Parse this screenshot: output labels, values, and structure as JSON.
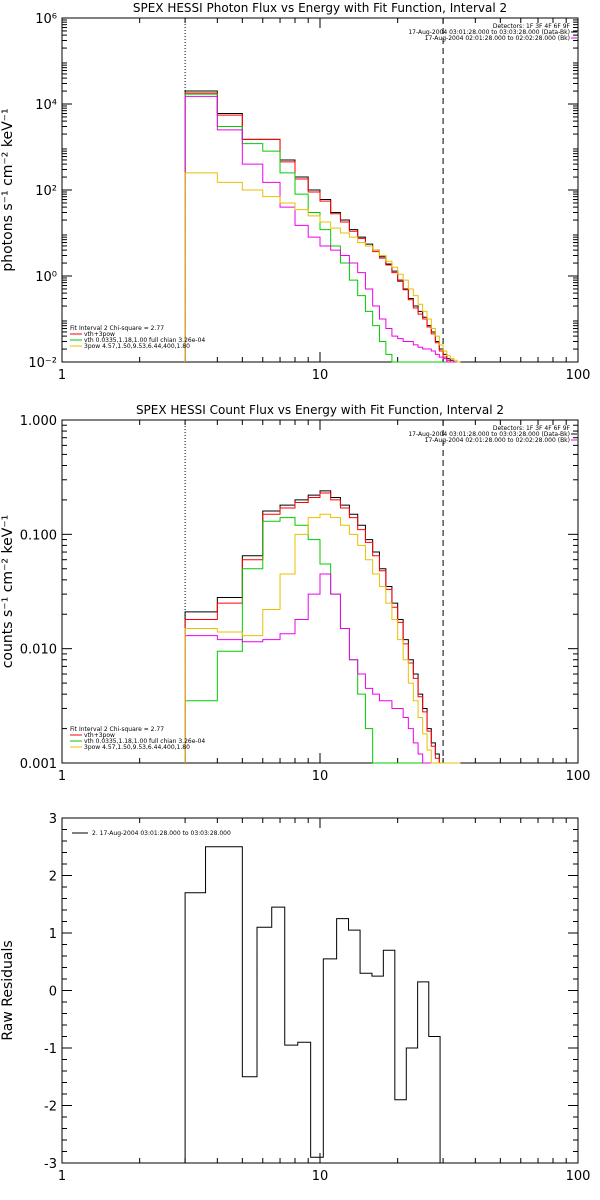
{
  "chart_data": [
    {
      "type": "line",
      "title": "SPEX HESSI Photon Flux vs Energy with Fit Function, Interval 2",
      "ylabel": "photons s⁻¹ cm⁻² keV⁻¹",
      "xscale": "log",
      "yscale": "log",
      "xlim": [
        1,
        100
      ],
      "ylim": [
        0.01,
        1000000
      ],
      "x_ticks": [
        1,
        10,
        100
      ],
      "x_ticklabels": [
        "1",
        "10",
        "100"
      ],
      "y_ticks": [
        0.01,
        1,
        100,
        10000,
        1000000
      ],
      "y_ticklabels": [
        "10⁻²",
        "10⁰",
        "10²",
        "10⁴",
        "10⁶"
      ],
      "vlines": [
        {
          "x": 3,
          "style": "dotted"
        },
        {
          "x": 30,
          "style": "dashed"
        }
      ],
      "legend_top": [
        "Detectors: 1F 3F 4F 6F 9F",
        "17-Aug-2004 03:01:28.000 to 03:03:28.000 (Data-Bk)",
        "17-Aug-2004 02:01:28.000 to 02:02:28.000 (Bk)"
      ],
      "legend_bottom": [
        "Fit Interval 2   Chi-square = 2.77",
        "vth+3pow",
        "vth 0.0335,1.18,1.00  full chian 3.26e-04",
        "3pow 4.57,1.50,9.53,6.44,400,1.80"
      ],
      "bin_edges": [
        3,
        4,
        5,
        6,
        7,
        8,
        9,
        10,
        11,
        12,
        13,
        14,
        15,
        16,
        17,
        18,
        19,
        20,
        21,
        22,
        23,
        24,
        25,
        26,
        27,
        28,
        29,
        30,
        31,
        32,
        33,
        34,
        35
      ],
      "series": [
        {
          "color": "#000000",
          "values": [
            20000,
            6000,
            1500,
            1500,
            500,
            200,
            100,
            60,
            30,
            20,
            12,
            8,
            5.5,
            4,
            2.8,
            1.9,
            1.3,
            0.8,
            0.5,
            0.3,
            0.2,
            0.15,
            0.11,
            0.07,
            0.05,
            0.03,
            0.02,
            0.015,
            0.012,
            0.011,
            0.01,
            0.01
          ]
        },
        {
          "color": "#ff0000",
          "values": [
            18000,
            5500,
            1500,
            1500,
            450,
            180,
            90,
            55,
            28,
            18,
            11,
            7.5,
            5,
            3.7,
            2.6,
            1.8,
            1.2,
            0.75,
            0.48,
            0.28,
            0.18,
            0.13,
            0.1,
            0.065,
            0.045,
            0.028,
            0.018,
            0.013,
            0.011,
            0.01,
            0.01,
            0.01
          ]
        },
        {
          "color": "#00cc00",
          "values": [
            17000,
            3000,
            1200,
            800,
            250,
            80,
            30,
            12,
            5,
            2,
            0.8,
            0.35,
            0.15,
            0.07,
            0.03,
            0.015,
            0.01,
            0.01,
            0.01,
            0.01,
            0.01,
            0.01,
            0.01,
            0.01,
            0.01,
            0.01,
            0.01,
            0.01,
            0.01,
            0.01,
            0.01,
            0.01
          ]
        },
        {
          "color": "#ee00ee",
          "values": [
            15000,
            2500,
            400,
            150,
            40,
            15,
            8,
            5,
            4,
            3,
            2,
            1.2,
            0.5,
            0.2,
            0.1,
            0.06,
            0.04,
            0.035,
            0.03,
            0.03,
            0.025,
            0.022,
            0.02,
            0.02,
            0.018,
            0.015,
            0.013,
            0.012,
            0.01,
            0.01,
            0.01,
            0.01
          ]
        },
        {
          "color": "#e8c000",
          "values": [
            250,
            150,
            100,
            70,
            50,
            35,
            25,
            18,
            13,
            10,
            8,
            6,
            5,
            4,
            3,
            2.2,
            1.6,
            1.1,
            0.8,
            0.5,
            0.35,
            0.22,
            0.15,
            0.1,
            0.06,
            0.04,
            0.025,
            0.018,
            0.014,
            0.012,
            0.011,
            0.01
          ]
        }
      ]
    },
    {
      "type": "line",
      "title": "SPEX HESSI Count Flux vs Energy with Fit Function, Interval 2",
      "ylabel": "counts s⁻¹ cm⁻² keV⁻¹",
      "xscale": "log",
      "yscale": "log",
      "xlim": [
        1,
        100
      ],
      "ylim": [
        0.001,
        1
      ],
      "x_ticks": [
        1,
        10,
        100
      ],
      "x_ticklabels": [
        "1",
        "10",
        "100"
      ],
      "y_ticks": [
        0.001,
        0.01,
        0.1,
        1
      ],
      "y_ticklabels": [
        "0.001",
        "0.010",
        "0.100",
        "1.000"
      ],
      "vlines": [
        {
          "x": 3,
          "style": "dotted"
        },
        {
          "x": 30,
          "style": "dashed"
        }
      ],
      "legend_top": [
        "Detectors: 1F 3F 4F 6F 9F",
        "17-Aug-2004 03:01:28.000 to 03:03:28.000 (Data-Bk)",
        "17-Aug-2004 02:01:28.000 to 02:02:28.000 (Bk)"
      ],
      "legend_bottom": [
        "Fit Interval 2   Chi-square = 2.77",
        "vth+3pow",
        "vth 0.0335,1.18,1.00  full chian 3.26e-04",
        "3pow 4.57,1.50,9.53,6.44,400,1.80"
      ],
      "bin_edges": [
        3,
        4,
        5,
        6,
        7,
        8,
        9,
        10,
        11,
        12,
        13,
        14,
        15,
        16,
        17,
        18,
        19,
        20,
        21,
        22,
        23,
        24,
        25,
        26,
        27,
        28,
        29,
        30,
        31,
        32,
        33,
        34,
        35
      ],
      "series": [
        {
          "color": "#000000",
          "values": [
            0.021,
            0.028,
            0.065,
            0.16,
            0.18,
            0.2,
            0.22,
            0.24,
            0.21,
            0.18,
            0.15,
            0.12,
            0.09,
            0.07,
            0.05,
            0.035,
            0.025,
            0.018,
            0.012,
            0.008,
            0.006,
            0.004,
            0.003,
            0.002,
            0.0015,
            0.0012,
            0.001,
            0.001,
            0.001,
            0.001,
            0.001,
            0.001
          ]
        },
        {
          "color": "#ff0000",
          "values": [
            0.018,
            0.025,
            0.06,
            0.15,
            0.17,
            0.19,
            0.21,
            0.23,
            0.2,
            0.17,
            0.14,
            0.11,
            0.085,
            0.065,
            0.048,
            0.033,
            0.023,
            0.017,
            0.011,
            0.0075,
            0.0055,
            0.0038,
            0.0028,
            0.0019,
            0.0014,
            0.0011,
            0.001,
            0.001,
            0.001,
            0.001,
            0.001,
            0.001
          ]
        },
        {
          "color": "#00cc00",
          "values": [
            0.0035,
            0.0095,
            0.05,
            0.13,
            0.14,
            0.12,
            0.09,
            0.055,
            0.03,
            0.015,
            0.008,
            0.004,
            0.002,
            0.001,
            0.001,
            0.001,
            0.001,
            0.001,
            0.001,
            0.001,
            0.001,
            0.001,
            0.001,
            0.001,
            0.001,
            0.001,
            0.001,
            0.001,
            0.001,
            0.001,
            0.001,
            0.001
          ]
        },
        {
          "color": "#ee00ee",
          "values": [
            0.013,
            0.012,
            0.0115,
            0.012,
            0.0135,
            0.018,
            0.03,
            0.045,
            0.03,
            0.015,
            0.008,
            0.006,
            0.0045,
            0.004,
            0.0035,
            0.0035,
            0.003,
            0.003,
            0.0025,
            0.002,
            0.0015,
            0.0012,
            0.001,
            0.001,
            0.001,
            0.001,
            0.001,
            0.001,
            0.001,
            0.001,
            0.001,
            0.001
          ]
        },
        {
          "color": "#e8c000",
          "values": [
            0.015,
            0.014,
            0.013,
            0.022,
            0.045,
            0.1,
            0.14,
            0.15,
            0.14,
            0.12,
            0.1,
            0.08,
            0.06,
            0.045,
            0.035,
            0.025,
            0.018,
            0.012,
            0.008,
            0.005,
            0.0035,
            0.0025,
            0.0018,
            0.0013,
            0.001,
            0.001,
            0.001,
            0.001,
            0.001,
            0.001,
            0.001,
            0.001
          ]
        }
      ]
    },
    {
      "type": "line",
      "title": "",
      "ylabel": "Raw Residuals",
      "xscale": "log",
      "yscale": "linear",
      "xlim": [
        1,
        100
      ],
      "ylim": [
        -3,
        3
      ],
      "x_ticks": [
        1,
        10,
        100
      ],
      "x_ticklabels": [
        "1",
        "10",
        "100"
      ],
      "y_ticks": [
        -3,
        -2,
        -1,
        0,
        1,
        2,
        3
      ],
      "y_ticklabels": [
        "-3",
        "-2",
        "-1",
        "0",
        "1",
        "2",
        "3"
      ],
      "legend": "2. 17-Aug-2004 03:01:28.000 to 03:03:28.000",
      "bin_edges": [
        3,
        3.6,
        4.2,
        5,
        5.7,
        6.5,
        7.3,
        8.2,
        9.2,
        10.3,
        11.6,
        12.9,
        14.3,
        15.9,
        17.6,
        19.5,
        21.6,
        23.9,
        26.4,
        29.2,
        32
      ],
      "series": [
        {
          "color": "#000000",
          "values": [
            1.7,
            2.5,
            2.5,
            -1.5,
            1.1,
            1.45,
            -0.95,
            -0.9,
            -2.9,
            0.55,
            1.25,
            1.05,
            0.3,
            0.25,
            0.7,
            -1.9,
            -1.0,
            0.15,
            -0.8,
            -3.1
          ]
        }
      ]
    }
  ]
}
